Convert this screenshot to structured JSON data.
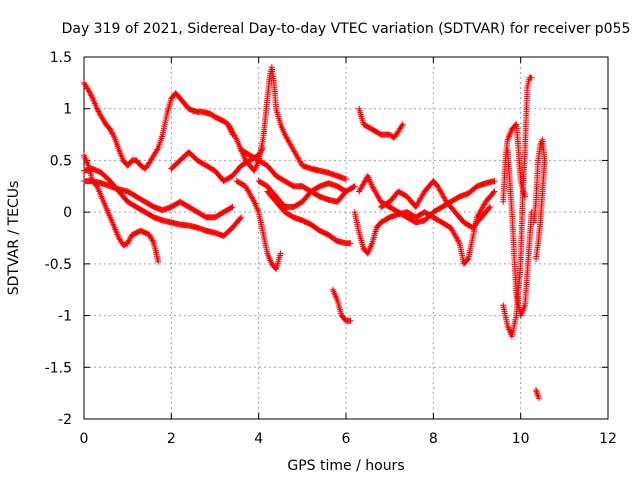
{
  "chart_data": {
    "type": "scatter",
    "title": "Day 319 of 2021, Sidereal Day-to-day VTEC variation (SDTVAR) for receiver p055",
    "xlabel": "GPS time / hours",
    "ylabel": "SDTVAR / TECUs",
    "xlim": [
      0,
      12
    ],
    "ylim": [
      -2,
      1.5
    ],
    "xticks": [
      0,
      2,
      4,
      6,
      8,
      10,
      12
    ],
    "xtick_labels": [
      "0",
      "2",
      "4",
      "6",
      "8",
      "10",
      "12"
    ],
    "yticks": [
      -2,
      -1.5,
      -1,
      -0.5,
      0,
      0.5,
      1,
      1.5
    ],
    "ytick_labels": [
      "-2",
      "-1.5",
      "-1",
      "-0.5",
      "0",
      "0.5",
      "1",
      "1.5"
    ],
    "grid": true,
    "marker": "plus",
    "color": "#ff0000",
    "series": [
      {
        "name": "track-1",
        "points": [
          [
            0.0,
            1.25
          ],
          [
            0.1,
            1.18
          ],
          [
            0.2,
            1.1
          ],
          [
            0.3,
            1.0
          ],
          [
            0.4,
            0.92
          ],
          [
            0.5,
            0.85
          ],
          [
            0.6,
            0.8
          ],
          [
            0.7,
            0.72
          ],
          [
            0.8,
            0.6
          ],
          [
            0.9,
            0.5
          ],
          [
            1.0,
            0.45
          ],
          [
            1.1,
            0.5
          ],
          [
            1.2,
            0.5
          ],
          [
            1.3,
            0.45
          ],
          [
            1.4,
            0.42
          ],
          [
            1.5,
            0.48
          ],
          [
            1.6,
            0.55
          ],
          [
            1.7,
            0.62
          ],
          [
            1.8,
            0.75
          ],
          [
            1.9,
            0.95
          ],
          [
            2.0,
            1.1
          ],
          [
            2.1,
            1.15
          ],
          [
            2.2,
            1.1
          ],
          [
            2.3,
            1.05
          ],
          [
            2.4,
            1.0
          ],
          [
            2.5,
            0.98
          ],
          [
            2.6,
            0.97
          ],
          [
            2.7,
            0.97
          ],
          [
            2.8,
            0.96
          ],
          [
            2.9,
            0.95
          ],
          [
            3.0,
            0.92
          ],
          [
            3.1,
            0.9
          ],
          [
            3.2,
            0.88
          ],
          [
            3.3,
            0.85
          ],
          [
            3.4,
            0.75
          ]
        ]
      },
      {
        "name": "track-2",
        "points": [
          [
            0.0,
            0.55
          ],
          [
            0.1,
            0.45
          ],
          [
            0.2,
            0.3
          ],
          [
            0.3,
            0.25
          ],
          [
            0.4,
            0.15
          ],
          [
            0.5,
            0.05
          ],
          [
            0.6,
            -0.05
          ],
          [
            0.7,
            -0.15
          ],
          [
            0.8,
            -0.25
          ],
          [
            0.9,
            -0.32
          ],
          [
            1.0,
            -0.3
          ],
          [
            1.1,
            -0.22
          ],
          [
            1.2,
            -0.2
          ],
          [
            1.3,
            -0.18
          ],
          [
            1.4,
            -0.2
          ],
          [
            1.5,
            -0.22
          ],
          [
            1.6,
            -0.3
          ],
          [
            1.7,
            -0.48
          ]
        ]
      },
      {
        "name": "track-3",
        "points": [
          [
            0.0,
            0.4
          ],
          [
            0.2,
            0.42
          ],
          [
            0.4,
            0.38
          ],
          [
            0.6,
            0.3
          ],
          [
            0.8,
            0.2
          ],
          [
            1.0,
            0.1
          ],
          [
            1.2,
            0.05
          ],
          [
            1.4,
            0.0
          ],
          [
            1.6,
            -0.05
          ],
          [
            1.8,
            -0.08
          ],
          [
            2.0,
            -0.1
          ],
          [
            2.2,
            -0.12
          ],
          [
            2.4,
            -0.13
          ],
          [
            2.6,
            -0.15
          ],
          [
            2.8,
            -0.18
          ],
          [
            3.0,
            -0.2
          ],
          [
            3.2,
            -0.23
          ],
          [
            3.4,
            -0.15
          ],
          [
            3.6,
            -0.05
          ]
        ]
      },
      {
        "name": "track-4",
        "points": [
          [
            0.0,
            0.3
          ],
          [
            0.2,
            0.3
          ],
          [
            0.4,
            0.28
          ],
          [
            0.6,
            0.25
          ],
          [
            0.8,
            0.22
          ],
          [
            1.0,
            0.2
          ],
          [
            1.2,
            0.15
          ],
          [
            1.4,
            0.1
          ],
          [
            1.6,
            0.05
          ],
          [
            1.8,
            0.02
          ],
          [
            2.0,
            0.05
          ],
          [
            2.2,
            0.1
          ],
          [
            2.4,
            0.05
          ],
          [
            2.6,
            0.0
          ],
          [
            2.8,
            -0.05
          ],
          [
            3.0,
            -0.05
          ],
          [
            3.2,
            0.0
          ],
          [
            3.4,
            0.05
          ]
        ]
      },
      {
        "name": "track-5",
        "points": [
          [
            2.0,
            0.42
          ],
          [
            2.2,
            0.5
          ],
          [
            2.4,
            0.58
          ],
          [
            2.6,
            0.5
          ],
          [
            2.8,
            0.45
          ],
          [
            3.0,
            0.4
          ],
          [
            3.2,
            0.3
          ],
          [
            3.4,
            0.35
          ],
          [
            3.6,
            0.45
          ],
          [
            3.8,
            0.5
          ],
          [
            4.0,
            0.55
          ],
          [
            4.1,
            0.62
          ]
        ]
      },
      {
        "name": "track-6",
        "points": [
          [
            3.3,
            0.85
          ],
          [
            3.5,
            0.7
          ],
          [
            3.7,
            0.5
          ],
          [
            3.9,
            0.4
          ],
          [
            4.0,
            0.5
          ],
          [
            4.1,
            0.7
          ],
          [
            4.15,
            0.9
          ],
          [
            4.2,
            1.1
          ],
          [
            4.25,
            1.3
          ],
          [
            4.3,
            1.4
          ],
          [
            4.35,
            1.25
          ],
          [
            4.4,
            1.0
          ],
          [
            4.5,
            0.85
          ],
          [
            4.6,
            0.75
          ],
          [
            4.8,
            0.6
          ],
          [
            5.0,
            0.45
          ],
          [
            5.2,
            0.42
          ],
          [
            5.4,
            0.4
          ],
          [
            5.6,
            0.38
          ],
          [
            5.8,
            0.35
          ],
          [
            6.0,
            0.32
          ]
        ]
      },
      {
        "name": "track-7",
        "points": [
          [
            3.5,
            0.3
          ],
          [
            3.7,
            0.25
          ],
          [
            3.9,
            0.1
          ],
          [
            4.0,
            0.0
          ],
          [
            4.1,
            -0.2
          ],
          [
            4.2,
            -0.4
          ],
          [
            4.3,
            -0.5
          ],
          [
            4.4,
            -0.55
          ],
          [
            4.5,
            -0.4
          ]
        ]
      },
      {
        "name": "track-8",
        "points": [
          [
            3.6,
            0.6
          ],
          [
            3.8,
            0.55
          ],
          [
            4.0,
            0.5
          ],
          [
            4.2,
            0.45
          ],
          [
            4.4,
            0.35
          ],
          [
            4.6,
            0.3
          ],
          [
            4.8,
            0.25
          ],
          [
            5.0,
            0.25
          ],
          [
            5.2,
            0.2
          ],
          [
            5.4,
            0.15
          ],
          [
            5.6,
            0.12
          ],
          [
            5.8,
            0.1
          ],
          [
            6.0,
            0.2
          ],
          [
            6.2,
            0.25
          ]
        ]
      },
      {
        "name": "track-9",
        "points": [
          [
            4.0,
            0.3
          ],
          [
            4.2,
            0.25
          ],
          [
            4.4,
            0.15
          ],
          [
            4.6,
            0.05
          ],
          [
            4.8,
            0.05
          ],
          [
            5.0,
            0.1
          ],
          [
            5.2,
            0.2
          ],
          [
            5.4,
            0.25
          ],
          [
            5.6,
            0.28
          ],
          [
            5.8,
            0.25
          ],
          [
            6.0,
            0.2
          ]
        ]
      },
      {
        "name": "track-10",
        "points": [
          [
            4.2,
            0.2
          ],
          [
            4.4,
            0.1
          ],
          [
            4.6,
            0.0
          ],
          [
            4.8,
            -0.05
          ],
          [
            5.0,
            -0.08
          ],
          [
            5.2,
            -0.12
          ],
          [
            5.4,
            -0.18
          ],
          [
            5.6,
            -0.22
          ],
          [
            5.8,
            -0.28
          ],
          [
            6.0,
            -0.3
          ],
          [
            6.1,
            -0.3
          ]
        ]
      },
      {
        "name": "track-11",
        "points": [
          [
            5.7,
            -0.75
          ],
          [
            5.8,
            -0.85
          ],
          [
            5.9,
            -1.0
          ],
          [
            6.0,
            -1.05
          ],
          [
            6.1,
            -1.05
          ]
        ]
      },
      {
        "name": "track-12",
        "points": [
          [
            6.3,
            1.0
          ],
          [
            6.4,
            0.85
          ],
          [
            6.6,
            0.8
          ],
          [
            6.8,
            0.75
          ],
          [
            7.0,
            0.75
          ],
          [
            7.1,
            0.72
          ],
          [
            7.2,
            0.78
          ],
          [
            7.3,
            0.85
          ]
        ]
      },
      {
        "name": "track-13",
        "points": [
          [
            6.2,
            0.0
          ],
          [
            6.3,
            -0.2
          ],
          [
            6.4,
            -0.35
          ],
          [
            6.5,
            -0.4
          ],
          [
            6.6,
            -0.3
          ],
          [
            6.7,
            -0.15
          ],
          [
            6.8,
            -0.1
          ],
          [
            7.0,
            -0.05
          ],
          [
            7.2,
            -0.02
          ],
          [
            7.4,
            0.0
          ],
          [
            7.6,
            -0.05
          ],
          [
            7.8,
            0.0
          ],
          [
            8.0,
            -0.05
          ],
          [
            8.2,
            -0.1
          ],
          [
            8.4,
            -0.15
          ],
          [
            8.6,
            -0.3
          ],
          [
            8.7,
            -0.5
          ],
          [
            8.8,
            -0.45
          ],
          [
            8.9,
            -0.25
          ],
          [
            9.0,
            -0.05
          ],
          [
            9.2,
            0.1
          ],
          [
            9.4,
            0.2
          ]
        ]
      },
      {
        "name": "track-14",
        "points": [
          [
            6.3,
            0.2
          ],
          [
            6.5,
            0.35
          ],
          [
            6.6,
            0.25
          ],
          [
            6.8,
            0.1
          ],
          [
            7.0,
            0.05
          ],
          [
            7.2,
            0.0
          ],
          [
            7.4,
            -0.05
          ],
          [
            7.6,
            -0.1
          ],
          [
            7.8,
            -0.08
          ],
          [
            8.0,
            0.0
          ],
          [
            8.2,
            0.05
          ],
          [
            8.4,
            0.1
          ],
          [
            8.6,
            0.15
          ],
          [
            8.8,
            0.18
          ],
          [
            9.0,
            0.25
          ],
          [
            9.2,
            0.28
          ],
          [
            9.4,
            0.3
          ]
        ]
      },
      {
        "name": "track-15",
        "points": [
          [
            6.8,
            0.05
          ],
          [
            7.0,
            0.1
          ],
          [
            7.2,
            0.2
          ],
          [
            7.4,
            0.15
          ],
          [
            7.6,
            0.05
          ],
          [
            7.8,
            0.2
          ],
          [
            8.0,
            0.3
          ],
          [
            8.1,
            0.25
          ],
          [
            8.3,
            0.1
          ],
          [
            8.5,
            0.0
          ],
          [
            8.7,
            -0.1
          ],
          [
            8.9,
            -0.15
          ],
          [
            9.1,
            -0.05
          ],
          [
            9.3,
            0.05
          ]
        ]
      },
      {
        "name": "track-16",
        "points": [
          [
            9.7,
            0.6
          ],
          [
            9.75,
            0.3
          ],
          [
            9.8,
            0.0
          ],
          [
            9.85,
            -0.4
          ],
          [
            9.9,
            -0.8
          ],
          [
            10.0,
            -1.0
          ],
          [
            10.1,
            -0.9
          ],
          [
            10.15,
            -0.6
          ],
          [
            10.2,
            -0.3
          ],
          [
            10.25,
            0.0
          ]
        ]
      },
      {
        "name": "track-17",
        "points": [
          [
            9.6,
            -0.9
          ],
          [
            9.7,
            -1.1
          ],
          [
            9.8,
            -1.2
          ],
          [
            9.9,
            -1.0
          ],
          [
            10.0,
            -0.5
          ],
          [
            10.05,
            0.2
          ],
          [
            10.1,
            0.6
          ],
          [
            10.15,
            1.2
          ],
          [
            10.2,
            1.3
          ],
          [
            10.25,
            1.3
          ]
        ]
      },
      {
        "name": "track-18",
        "points": [
          [
            9.6,
            0.1
          ],
          [
            9.65,
            0.5
          ],
          [
            9.7,
            0.7
          ],
          [
            9.8,
            0.8
          ],
          [
            9.9,
            0.85
          ],
          [
            9.95,
            0.6
          ],
          [
            10.0,
            0.3
          ],
          [
            10.1,
            0.15
          ]
        ]
      },
      {
        "name": "track-19",
        "points": [
          [
            10.3,
            -0.1
          ],
          [
            10.35,
            0.1
          ],
          [
            10.4,
            0.5
          ],
          [
            10.45,
            0.65
          ],
          [
            10.5,
            0.7
          ],
          [
            10.55,
            0.5
          ],
          [
            10.5,
            0.2
          ],
          [
            10.45,
            -0.1
          ],
          [
            10.4,
            -0.3
          ],
          [
            10.35,
            -0.45
          ]
        ]
      },
      {
        "name": "track-20",
        "points": [
          [
            10.35,
            -1.72
          ],
          [
            10.4,
            -1.78
          ],
          [
            10.42,
            -1.8
          ]
        ]
      }
    ]
  }
}
